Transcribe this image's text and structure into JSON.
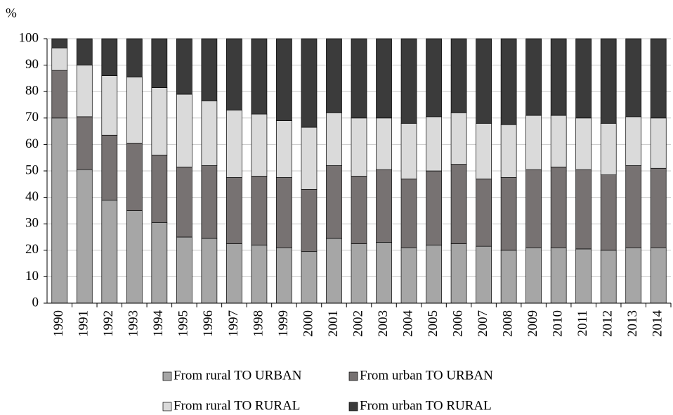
{
  "chart_data": {
    "type": "stacked_bar",
    "y_label": "%",
    "categories": [
      "1990",
      "1991",
      "1992",
      "1993",
      "1994",
      "1995",
      "1996",
      "1997",
      "1998",
      "1999",
      "2000",
      "2001",
      "2002",
      "2003",
      "2004",
      "2005",
      "2006",
      "2007",
      "2008",
      "2009",
      "2010",
      "2011",
      "2012",
      "2013",
      "2014"
    ],
    "series": [
      {
        "name": "From rural TO URBAN",
        "color": "#a6a6a6",
        "values": [
          70,
          50.5,
          39,
          35,
          30.5,
          25,
          24.5,
          22.5,
          22,
          21,
          19.5,
          24.5,
          22.5,
          23,
          21,
          22,
          22.5,
          21.5,
          20,
          21,
          21,
          20.5,
          20,
          21,
          21
        ]
      },
      {
        "name": "From urban TO URBAN",
        "color": "#777272",
        "values": [
          18,
          20,
          24.5,
          25.5,
          25.5,
          26.5,
          27.5,
          25,
          26,
          26.5,
          23.5,
          27.5,
          25.5,
          27.5,
          26,
          28,
          30,
          25.5,
          27.5,
          29.5,
          30.5,
          30,
          28.5,
          31,
          30
        ]
      },
      {
        "name": "From rural TO RURAL",
        "color": "#dadada",
        "values": [
          8.5,
          19.5,
          22.5,
          25,
          25.5,
          27.5,
          24.5,
          25.5,
          23.5,
          21.5,
          23.5,
          20,
          22,
          19.5,
          21,
          20.5,
          19.5,
          21,
          20,
          20.5,
          19.5,
          19.5,
          19.5,
          18.5,
          19
        ]
      },
      {
        "name": "From urban TO RURAL",
        "color": "#3b3b3b",
        "values": [
          3.5,
          10,
          14,
          14.5,
          18.5,
          21,
          23.5,
          27,
          28.5,
          31,
          33.5,
          28,
          30,
          30,
          32,
          29.5,
          28,
          32,
          32.5,
          29,
          29,
          30,
          32,
          29.5,
          30
        ]
      }
    ],
    "ylim": [
      0,
      100
    ],
    "yticks": [
      0,
      10,
      20,
      30,
      40,
      50,
      60,
      70,
      80,
      90,
      100
    ],
    "grid": true
  }
}
